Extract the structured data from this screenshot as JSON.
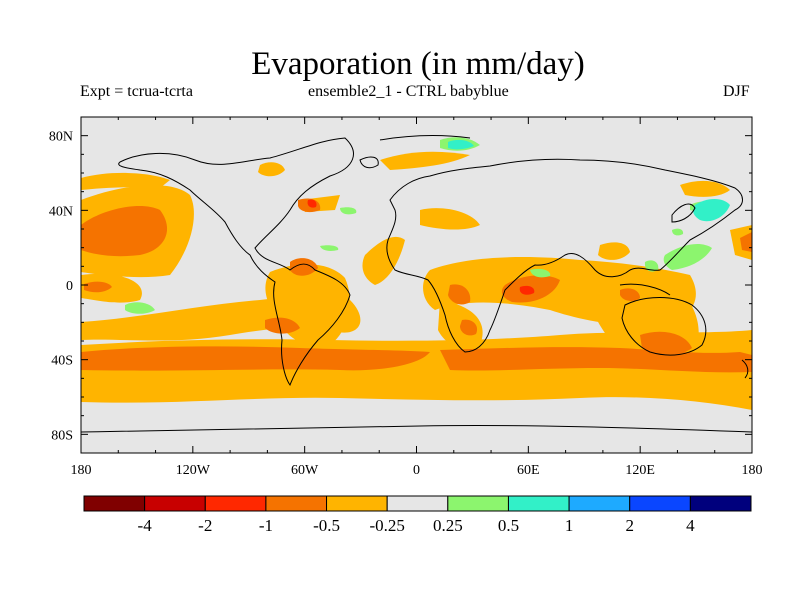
{
  "title": "Evaporation (in mm/day)",
  "left_subtitle": "Expt = tcrua-tcrta",
  "center_subtitle": "ensemble2_1 - CTRL babyblue",
  "right_subtitle": "DJF",
  "map": {
    "lon_range": [
      -180,
      180
    ],
    "lat_range": [
      -90,
      90
    ],
    "background_color": "#e6e6e6",
    "lat_ticks": [
      {
        "value": 80,
        "label": "80N"
      },
      {
        "value": 40,
        "label": "40N"
      },
      {
        "value": 0,
        "label": "0"
      },
      {
        "value": -40,
        "label": "40S"
      },
      {
        "value": -80,
        "label": "80S"
      }
    ],
    "lon_ticks": [
      {
        "value": -180,
        "label": "180"
      },
      {
        "value": -120,
        "label": "120W"
      },
      {
        "value": -60,
        "label": "60W"
      },
      {
        "value": 0,
        "label": "0"
      },
      {
        "value": 60,
        "label": "60E"
      },
      {
        "value": 120,
        "label": "120E"
      },
      {
        "value": 180,
        "label": "180"
      }
    ]
  },
  "colorbar": {
    "colors": [
      "#800000",
      "#c80000",
      "#ff2800",
      "#f57300",
      "#ffb400",
      "#e6e6e6",
      "#8cf56e",
      "#32f0c8",
      "#1eaaff",
      "#0a46ff",
      "#00007d"
    ],
    "labels": [
      "-4",
      "-2",
      "-1",
      "-0.5",
      "-0.25",
      "0.25",
      "0.5",
      "1",
      "2",
      "4"
    ]
  }
}
